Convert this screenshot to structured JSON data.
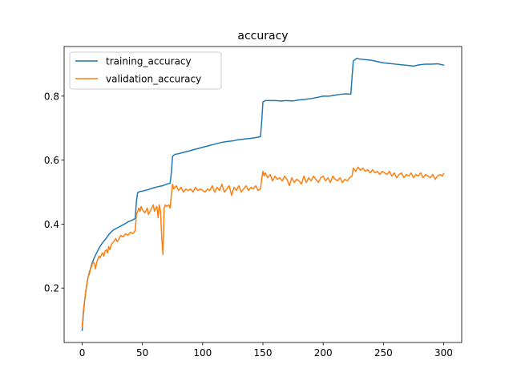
{
  "chart_data": {
    "type": "line",
    "title": "accuracy",
    "xlabel": "",
    "ylabel": "",
    "xlim": [
      -15,
      315
    ],
    "ylim": [
      0.03,
      0.955
    ],
    "xticks": [
      0,
      50,
      100,
      150,
      200,
      250,
      300
    ],
    "yticks": [
      0.2,
      0.4,
      0.6,
      0.8
    ],
    "ytick_labels": [
      "0.2",
      "0.4",
      "0.6",
      "0.8"
    ],
    "grid": false,
    "legend": "top-left",
    "series": [
      {
        "name": "training_accuracy",
        "color": "#1f77b4",
        "points": [
          [
            0,
            0.068
          ],
          [
            1,
            0.12
          ],
          [
            2,
            0.16
          ],
          [
            3,
            0.19
          ],
          [
            4,
            0.215
          ],
          [
            5,
            0.235
          ],
          [
            6,
            0.25
          ],
          [
            7,
            0.262
          ],
          [
            8,
            0.275
          ],
          [
            10,
            0.295
          ],
          [
            12,
            0.31
          ],
          [
            14,
            0.325
          ],
          [
            16,
            0.337
          ],
          [
            18,
            0.347
          ],
          [
            20,
            0.356
          ],
          [
            22,
            0.367
          ],
          [
            24,
            0.375
          ],
          [
            26,
            0.382
          ],
          [
            28,
            0.386
          ],
          [
            30,
            0.39
          ],
          [
            32,
            0.394
          ],
          [
            34,
            0.398
          ],
          [
            36,
            0.402
          ],
          [
            38,
            0.407
          ],
          [
            40,
            0.41
          ],
          [
            42,
            0.413
          ],
          [
            44,
            0.418
          ],
          [
            45,
            0.47
          ],
          [
            46,
            0.498
          ],
          [
            48,
            0.502
          ],
          [
            50,
            0.503
          ],
          [
            52,
            0.505
          ],
          [
            55,
            0.508
          ],
          [
            58,
            0.512
          ],
          [
            61,
            0.515
          ],
          [
            64,
            0.518
          ],
          [
            67,
            0.52
          ],
          [
            70,
            0.525
          ],
          [
            73,
            0.528
          ],
          [
            74,
            0.56
          ],
          [
            75,
            0.612
          ],
          [
            77,
            0.618
          ],
          [
            80,
            0.62
          ],
          [
            85,
            0.625
          ],
          [
            90,
            0.63
          ],
          [
            95,
            0.635
          ],
          [
            100,
            0.64
          ],
          [
            105,
            0.645
          ],
          [
            110,
            0.65
          ],
          [
            115,
            0.655
          ],
          [
            120,
            0.658
          ],
          [
            125,
            0.66
          ],
          [
            130,
            0.664
          ],
          [
            135,
            0.666
          ],
          [
            140,
            0.668
          ],
          [
            145,
            0.671
          ],
          [
            148,
            0.673
          ],
          [
            149,
            0.72
          ],
          [
            150,
            0.782
          ],
          [
            152,
            0.786
          ],
          [
            155,
            0.786
          ],
          [
            160,
            0.786
          ],
          [
            165,
            0.785
          ],
          [
            170,
            0.786
          ],
          [
            175,
            0.785
          ],
          [
            180,
            0.788
          ],
          [
            185,
            0.79
          ],
          [
            190,
            0.792
          ],
          [
            195,
            0.796
          ],
          [
            200,
            0.8
          ],
          [
            205,
            0.8
          ],
          [
            210,
            0.803
          ],
          [
            215,
            0.806
          ],
          [
            220,
            0.807
          ],
          [
            223,
            0.806
          ],
          [
            224,
            0.86
          ],
          [
            225,
            0.91
          ],
          [
            228,
            0.918
          ],
          [
            230,
            0.916
          ],
          [
            235,
            0.914
          ],
          [
            240,
            0.912
          ],
          [
            245,
            0.908
          ],
          [
            250,
            0.904
          ],
          [
            255,
            0.902
          ],
          [
            260,
            0.9
          ],
          [
            265,
            0.898
          ],
          [
            270,
            0.896
          ],
          [
            275,
            0.894
          ],
          [
            280,
            0.898
          ],
          [
            285,
            0.9
          ],
          [
            290,
            0.9
          ],
          [
            295,
            0.901
          ],
          [
            300,
            0.897
          ]
        ]
      },
      {
        "name": "validation_accuracy",
        "color": "#ff7f0e",
        "points": [
          [
            0,
            0.078
          ],
          [
            1,
            0.13
          ],
          [
            2,
            0.16
          ],
          [
            3,
            0.19
          ],
          [
            4,
            0.215
          ],
          [
            5,
            0.235
          ],
          [
            6,
            0.245
          ],
          [
            7,
            0.26
          ],
          [
            8,
            0.27
          ],
          [
            9,
            0.28
          ],
          [
            10,
            0.278
          ],
          [
            11,
            0.26
          ],
          [
            12,
            0.28
          ],
          [
            13,
            0.29
          ],
          [
            14,
            0.3
          ],
          [
            15,
            0.295
          ],
          [
            16,
            0.305
          ],
          [
            17,
            0.31
          ],
          [
            18,
            0.3
          ],
          [
            19,
            0.315
          ],
          [
            20,
            0.32
          ],
          [
            21,
            0.31
          ],
          [
            22,
            0.33
          ],
          [
            23,
            0.32
          ],
          [
            24,
            0.335
          ],
          [
            25,
            0.34
          ],
          [
            26,
            0.345
          ],
          [
            27,
            0.35
          ],
          [
            28,
            0.355
          ],
          [
            29,
            0.345
          ],
          [
            30,
            0.35
          ],
          [
            32,
            0.365
          ],
          [
            34,
            0.36
          ],
          [
            36,
            0.37
          ],
          [
            38,
            0.365
          ],
          [
            40,
            0.375
          ],
          [
            42,
            0.37
          ],
          [
            44,
            0.38
          ],
          [
            45,
            0.43
          ],
          [
            46,
            0.44
          ],
          [
            47,
            0.45
          ],
          [
            48,
            0.44
          ],
          [
            49,
            0.455
          ],
          [
            50,
            0.445
          ],
          [
            52,
            0.435
          ],
          [
            54,
            0.45
          ],
          [
            55,
            0.43
          ],
          [
            57,
            0.445
          ],
          [
            59,
            0.46
          ],
          [
            60,
            0.44
          ],
          [
            62,
            0.455
          ],
          [
            63,
            0.42
          ],
          [
            64,
            0.46
          ],
          [
            65,
            0.44
          ],
          [
            66,
            0.36
          ],
          [
            67,
            0.305
          ],
          [
            68,
            0.45
          ],
          [
            69,
            0.46
          ],
          [
            70,
            0.455
          ],
          [
            72,
            0.46
          ],
          [
            73,
            0.45
          ],
          [
            74,
            0.49
          ],
          [
            75,
            0.525
          ],
          [
            76,
            0.51
          ],
          [
            78,
            0.52
          ],
          [
            80,
            0.505
          ],
          [
            82,
            0.515
          ],
          [
            84,
            0.5
          ],
          [
            86,
            0.51
          ],
          [
            88,
            0.505
          ],
          [
            90,
            0.51
          ],
          [
            92,
            0.5
          ],
          [
            94,
            0.515
          ],
          [
            96,
            0.505
          ],
          [
            98,
            0.51
          ],
          [
            100,
            0.505
          ],
          [
            102,
            0.5
          ],
          [
            104,
            0.51
          ],
          [
            106,
            0.505
          ],
          [
            108,
            0.52
          ],
          [
            110,
            0.5
          ],
          [
            112,
            0.515
          ],
          [
            114,
            0.505
          ],
          [
            116,
            0.525
          ],
          [
            118,
            0.5
          ],
          [
            120,
            0.51
          ],
          [
            122,
            0.52
          ],
          [
            124,
            0.49
          ],
          [
            126,
            0.515
          ],
          [
            128,
            0.505
          ],
          [
            130,
            0.52
          ],
          [
            132,
            0.5
          ],
          [
            134,
            0.51
          ],
          [
            136,
            0.52
          ],
          [
            138,
            0.505
          ],
          [
            140,
            0.515
          ],
          [
            142,
            0.51
          ],
          [
            144,
            0.52
          ],
          [
            146,
            0.505
          ],
          [
            148,
            0.51
          ],
          [
            149,
            0.54
          ],
          [
            150,
            0.565
          ],
          [
            151,
            0.55
          ],
          [
            152,
            0.56
          ],
          [
            154,
            0.545
          ],
          [
            156,
            0.555
          ],
          [
            158,
            0.535
          ],
          [
            160,
            0.55
          ],
          [
            162,
            0.54
          ],
          [
            164,
            0.545
          ],
          [
            166,
            0.535
          ],
          [
            168,
            0.55
          ],
          [
            170,
            0.54
          ],
          [
            172,
            0.52
          ],
          [
            174,
            0.545
          ],
          [
            176,
            0.53
          ],
          [
            178,
            0.54
          ],
          [
            180,
            0.535
          ],
          [
            182,
            0.525
          ],
          [
            184,
            0.55
          ],
          [
            186,
            0.53
          ],
          [
            188,
            0.545
          ],
          [
            190,
            0.535
          ],
          [
            192,
            0.55
          ],
          [
            194,
            0.54
          ],
          [
            196,
            0.53
          ],
          [
            198,
            0.545
          ],
          [
            200,
            0.55
          ],
          [
            202,
            0.535
          ],
          [
            204,
            0.545
          ],
          [
            206,
            0.53
          ],
          [
            208,
            0.55
          ],
          [
            210,
            0.54
          ],
          [
            212,
            0.535
          ],
          [
            214,
            0.545
          ],
          [
            216,
            0.53
          ],
          [
            218,
            0.54
          ],
          [
            220,
            0.535
          ],
          [
            222,
            0.545
          ],
          [
            224,
            0.55
          ],
          [
            225,
            0.575
          ],
          [
            227,
            0.565
          ],
          [
            229,
            0.578
          ],
          [
            231,
            0.568
          ],
          [
            233,
            0.575
          ],
          [
            235,
            0.565
          ],
          [
            237,
            0.57
          ],
          [
            239,
            0.56
          ],
          [
            241,
            0.57
          ],
          [
            243,
            0.56
          ],
          [
            245,
            0.565
          ],
          [
            247,
            0.555
          ],
          [
            249,
            0.565
          ],
          [
            251,
            0.56
          ],
          [
            253,
            0.555
          ],
          [
            255,
            0.565
          ],
          [
            257,
            0.55
          ],
          [
            259,
            0.56
          ],
          [
            261,
            0.545
          ],
          [
            263,
            0.555
          ],
          [
            265,
            0.56
          ],
          [
            267,
            0.545
          ],
          [
            269,
            0.555
          ],
          [
            271,
            0.55
          ],
          [
            273,
            0.56
          ],
          [
            275,
            0.545
          ],
          [
            277,
            0.555
          ],
          [
            279,
            0.55
          ],
          [
            281,
            0.56
          ],
          [
            283,
            0.545
          ],
          [
            285,
            0.555
          ],
          [
            287,
            0.55
          ],
          [
            289,
            0.545
          ],
          [
            291,
            0.555
          ],
          [
            293,
            0.54
          ],
          [
            295,
            0.55
          ],
          [
            297,
            0.555
          ],
          [
            299,
            0.55
          ],
          [
            300,
            0.558
          ]
        ]
      }
    ]
  }
}
